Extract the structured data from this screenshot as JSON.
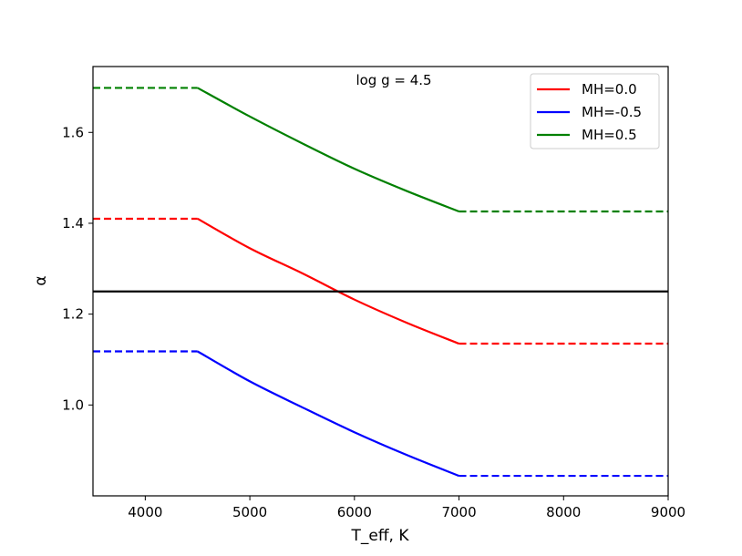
{
  "chart_data": {
    "type": "line",
    "annotation": "log g = 4.5",
    "xlabel": "T_eff, K",
    "ylabel": "α",
    "xlim": [
      3500,
      9000
    ],
    "ylim": [
      0.8,
      1.745
    ],
    "xticks": [
      4000,
      5000,
      6000,
      7000,
      8000,
      9000
    ],
    "yticks": [
      1.0,
      1.2,
      1.4,
      1.6
    ],
    "xtick_labels": [
      "4000",
      "5000",
      "6000",
      "7000",
      "8000",
      "9000"
    ],
    "ytick_labels": [
      "1.0",
      "1.2",
      "1.4",
      "1.6"
    ],
    "grid": false,
    "legend_position": "top-right",
    "series": [
      {
        "name": "MH=0.0",
        "color": "#ff0000",
        "solid": [
          [
            4500,
            1.41
          ],
          [
            5000,
            1.345
          ],
          [
            5500,
            1.29
          ],
          [
            6000,
            1.232
          ],
          [
            6500,
            1.181
          ],
          [
            7000,
            1.135
          ]
        ],
        "dashed_left": [
          [
            3500,
            1.41
          ],
          [
            4500,
            1.41
          ]
        ],
        "dashed_right": [
          [
            7000,
            1.135
          ],
          [
            9000,
            1.135
          ]
        ]
      },
      {
        "name": "MH=-0.5",
        "color": "#0000ff",
        "solid": [
          [
            4500,
            1.118
          ],
          [
            5000,
            1.052
          ],
          [
            5500,
            0.995
          ],
          [
            6000,
            0.94
          ],
          [
            6500,
            0.89
          ],
          [
            7000,
            0.844
          ]
        ],
        "dashed_left": [
          [
            3500,
            1.118
          ],
          [
            4500,
            1.118
          ]
        ],
        "dashed_right": [
          [
            7000,
            0.844
          ],
          [
            9000,
            0.844
          ]
        ]
      },
      {
        "name": "MH=0.5",
        "color": "#008000",
        "solid": [
          [
            4500,
            1.698
          ],
          [
            5000,
            1.635
          ],
          [
            5500,
            1.576
          ],
          [
            6000,
            1.52
          ],
          [
            6500,
            1.471
          ],
          [
            7000,
            1.426
          ]
        ],
        "dashed_left": [
          [
            3500,
            1.698
          ],
          [
            4500,
            1.698
          ]
        ],
        "dashed_right": [
          [
            7000,
            1.426
          ],
          [
            9000,
            1.426
          ]
        ]
      }
    ],
    "reference_line": {
      "y": 1.25,
      "color": "#000000"
    }
  }
}
